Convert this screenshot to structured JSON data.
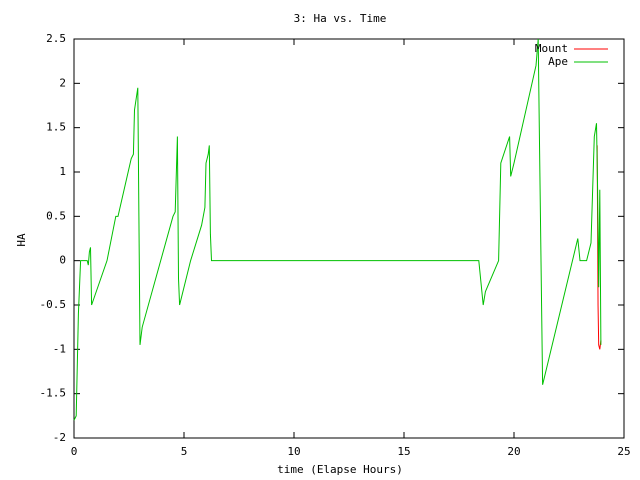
{
  "chart_data": {
    "type": "line",
    "title": "3: Ha vs. Time",
    "x_label": "time (Elapse Hours)",
    "y_label": "HA",
    "xlim": [
      0,
      25
    ],
    "xticks": [
      0,
      5,
      10,
      15,
      20,
      25
    ],
    "ylim": [
      -2,
      2.5
    ],
    "yticks": [
      -2,
      -1.5,
      -1,
      -0.5,
      0,
      0.5,
      1,
      1.5,
      2,
      2.5
    ],
    "grid": false,
    "legend": "top-right",
    "series": [
      {
        "name": "Mount",
        "color": "#ff0000",
        "x": [
          23.78,
          23.82,
          23.85,
          23.9,
          23.95
        ],
        "values": [
          1.3,
          -0.5,
          -0.95,
          -1.0,
          -0.9
        ]
      },
      {
        "name": "Ape",
        "color": "#00c000",
        "x": [
          0,
          0.1,
          0.2,
          0.3,
          0.6,
          0.65,
          0.7,
          0.75,
          0.8,
          1.5,
          1.9,
          2.0,
          2.6,
          2.7,
          2.75,
          2.9,
          2.95,
          3.0,
          3.1,
          4.5,
          4.6,
          4.7,
          4.75,
          4.8,
          5.3,
          5.8,
          5.95,
          6.0,
          6.1,
          6.15,
          6.2,
          6.25,
          18.4,
          18.6,
          18.7,
          19.3,
          19.4,
          19.8,
          19.85,
          20.0,
          21.0,
          21.1,
          21.15,
          21.3,
          22.9,
          23.0,
          23.3,
          23.5,
          23.65,
          23.75,
          23.8,
          23.85,
          23.9,
          23.95
        ],
        "values": [
          -1.8,
          -1.75,
          -0.6,
          0,
          0,
          -0.05,
          0.1,
          0.15,
          -0.5,
          0,
          0.5,
          0.5,
          1.15,
          1.2,
          1.7,
          1.95,
          0.5,
          -0.95,
          -0.75,
          0.5,
          0.55,
          1.4,
          -0.2,
          -0.5,
          0,
          0.4,
          0.6,
          1.1,
          1.2,
          1.3,
          0.3,
          0,
          0,
          -0.5,
          -0.35,
          0,
          1.1,
          1.4,
          0.95,
          1.1,
          2.2,
          2.5,
          1.5,
          -1.4,
          0.25,
          0,
          0,
          0.2,
          1.4,
          1.55,
          0.8,
          -0.3,
          0.8,
          -0.95
        ]
      }
    ]
  }
}
